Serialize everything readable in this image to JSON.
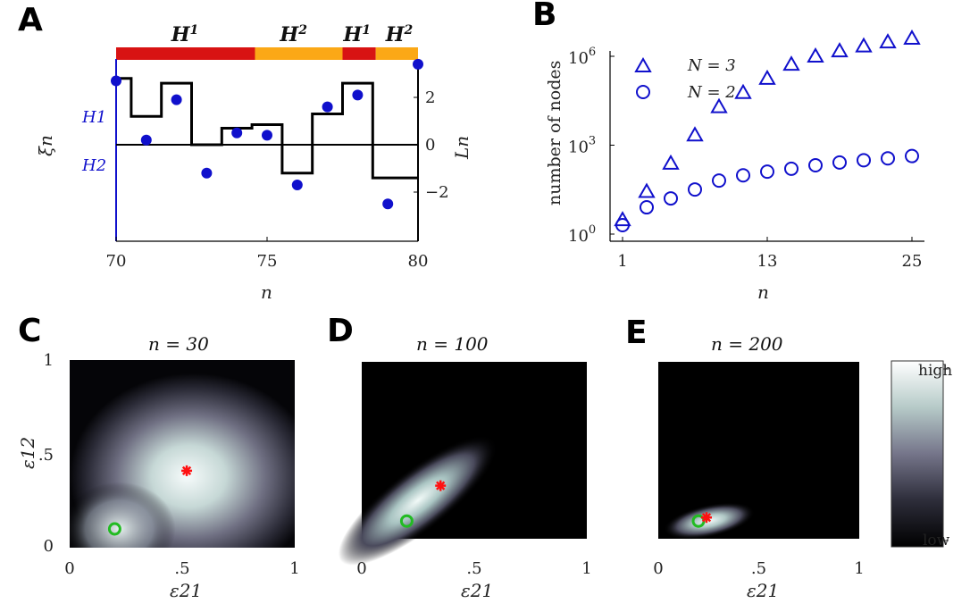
{
  "panels": {
    "A": {
      "letter": "A"
    },
    "B": {
      "letter": "B"
    },
    "C": {
      "letter": "C"
    },
    "D": {
      "letter": "D"
    },
    "E": {
      "letter": "E"
    }
  },
  "colors": {
    "red": "#d81313",
    "orange": "#fba816",
    "blue": "#1010cc",
    "green": "#22bb22",
    "star": "#ff1111"
  },
  "chart_data": [
    {
      "id": "A",
      "type": "scatter",
      "xlabel": "n",
      "ylabel_left": "ξn",
      "ylabel_right": "Ln",
      "x_ticks": [
        "70",
        "75",
        "80"
      ],
      "xlim": [
        70,
        80
      ],
      "left_tick_labels": [
        "H1",
        "H2"
      ],
      "right_ticks": [
        "2",
        "0",
        "-2"
      ],
      "y_right_lim": [
        -4.2,
        3.6
      ],
      "band_labels": [
        {
          "text": "H1",
          "x_center": 72.3
        },
        {
          "text": "H2",
          "x_center": 75.9
        },
        {
          "text": "H1",
          "x_center": 78.0
        },
        {
          "text": "H2",
          "x_center": 79.4
        }
      ],
      "band_segments": [
        {
          "from": 70,
          "to": 74.6,
          "color": "red"
        },
        {
          "from": 74.6,
          "to": 77.5,
          "color": "orange"
        },
        {
          "from": 77.5,
          "to": 78.6,
          "color": "red"
        },
        {
          "from": 78.6,
          "to": 80,
          "color": "orange"
        }
      ],
      "points": {
        "x": [
          70,
          71,
          72,
          73,
          74,
          75,
          76,
          77,
          78,
          79,
          80
        ],
        "y": [
          2.7,
          0.2,
          1.9,
          -1.2,
          0.5,
          0.4,
          -1.7,
          1.6,
          2.1,
          -2.5,
          3.4
        ]
      },
      "step_line": {
        "x": [
          70,
          71,
          72,
          73,
          74,
          75,
          76,
          77,
          78,
          79,
          80
        ],
        "y": [
          2.8,
          1.2,
          2.6,
          0.0,
          0.7,
          0.85,
          -1.2,
          1.3,
          2.6,
          -1.4,
          -1.4
        ]
      }
    },
    {
      "id": "B",
      "type": "scatter",
      "xlabel": "n",
      "ylabel": "number of nodes",
      "x_ticks": [
        "1",
        "13",
        "25"
      ],
      "xlim": [
        0,
        25
      ],
      "y_scale": "log",
      "y_ticks": [
        "10",
        "10",
        "10"
      ],
      "y_tick_exponents": [
        "0",
        "3",
        "6"
      ],
      "ylim_log10": [
        0,
        6
      ],
      "series": [
        {
          "name": "N = 3",
          "marker": "triangle",
          "x": [
            1,
            3,
            5,
            7,
            9,
            11,
            13,
            15,
            17,
            19,
            21,
            23,
            25
          ],
          "y": [
            3,
            27,
            243,
            2187,
            19683,
            59049,
            177147,
            531441,
            1000000,
            1500000,
            2200000,
            3000000,
            4000000
          ]
        },
        {
          "name": "N = 2",
          "marker": "circle",
          "x": [
            1,
            3,
            5,
            7,
            9,
            11,
            13,
            15,
            17,
            19,
            21,
            23,
            25
          ],
          "y": [
            2,
            8,
            16,
            32,
            64,
            96,
            128,
            160,
            210,
            260,
            310,
            360,
            430
          ]
        }
      ]
    },
    {
      "id": "C",
      "type": "heatmap",
      "title": "n = 30",
      "xlabel": "ε21",
      "ylabel": "ε12",
      "x_ticks": [
        "0",
        ".5",
        "1"
      ],
      "y_ticks": [
        "1",
        ".5",
        "0"
      ],
      "peak": {
        "x": 0.55,
        "y": 0.38
      },
      "star": {
        "x": 0.52,
        "y": 0.41
      },
      "circle": {
        "x": 0.2,
        "y": 0.1
      }
    },
    {
      "id": "D",
      "type": "heatmap",
      "title": "n = 100",
      "xlabel": "ε21",
      "x_ticks": [
        "0",
        ".5",
        "1"
      ],
      "peak": {
        "x": 0.25,
        "y": 0.16
      },
      "star": {
        "x": 0.35,
        "y": 0.3
      },
      "circle": {
        "x": 0.2,
        "y": 0.1
      }
    },
    {
      "id": "E",
      "type": "heatmap",
      "title": "n = 200",
      "xlabel": "ε21",
      "x_ticks": [
        "0",
        ".5",
        "1"
      ],
      "peak": {
        "x": 0.22,
        "y": 0.12
      },
      "star": {
        "x": 0.24,
        "y": 0.12
      },
      "circle": {
        "x": 0.2,
        "y": 0.1
      },
      "colorbar": {
        "high": "high",
        "low": "low"
      }
    }
  ]
}
